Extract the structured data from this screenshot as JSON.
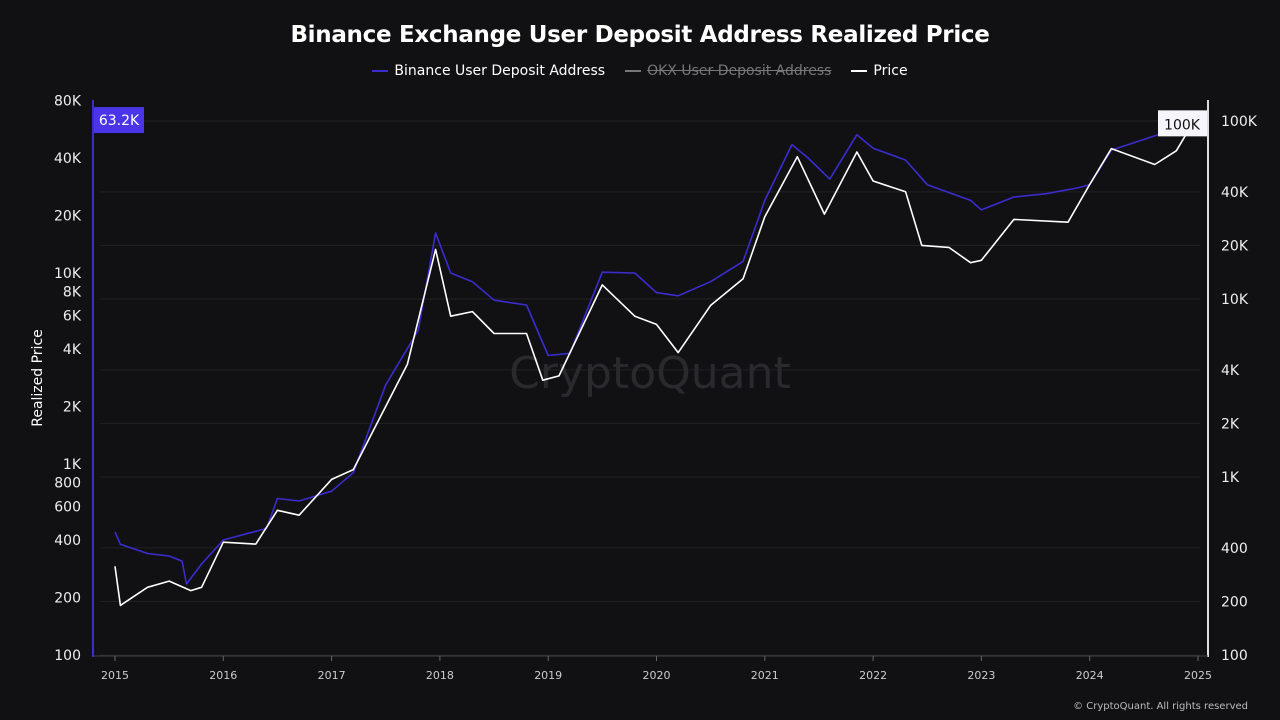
{
  "chart_data": {
    "type": "line",
    "title": "Binance Exchange User Deposit Address Realized Price",
    "ylabel": "Realized Price",
    "legend": [
      {
        "name": "Binance User Deposit Address",
        "color": "#3b2ccf",
        "visible": true
      },
      {
        "name": "OKX User Deposit Address",
        "color": "#9a9a9a",
        "visible": false
      },
      {
        "name": "Price",
        "color": "#ffffff",
        "visible": true
      }
    ],
    "x_ticks": [
      "2015",
      "2016",
      "2017",
      "2018",
      "2019",
      "2020",
      "2021",
      "2022",
      "2023",
      "2024",
      "2025"
    ],
    "xlim": [
      2014.9,
      2025.0
    ],
    "left_axis": {
      "scale": "log",
      "ylim": [
        100,
        80000
      ],
      "ticks": [
        "80K",
        "40K",
        "20K",
        "10K",
        "8K",
        "6K",
        "4K",
        "2K",
        "1K",
        "800",
        "600",
        "400",
        "200",
        "100"
      ],
      "tick_values": [
        80000,
        40000,
        20000,
        10000,
        8000,
        6000,
        4000,
        2000,
        1000,
        800,
        600,
        400,
        200,
        100
      ],
      "current_label": "63.2K",
      "current_value": 63200
    },
    "right_axis": {
      "scale": "log",
      "ylim": [
        100,
        130000
      ],
      "ticks": [
        "100K",
        "40K",
        "20K",
        "10K",
        "4K",
        "2K",
        "1K",
        "400",
        "200",
        "100"
      ],
      "tick_values": [
        100000,
        40000,
        20000,
        10000,
        4000,
        2000,
        1000,
        400,
        200,
        100
      ],
      "current_label": "100K",
      "current_value": 97000
    },
    "grid": true,
    "series": [
      {
        "name": "Binance User Deposit Address",
        "axis": "left",
        "color": "#3b2ccf",
        "x": [
          2015.0,
          2015.05,
          2015.3,
          2015.5,
          2015.62,
          2015.66,
          2015.8,
          2016.0,
          2016.4,
          2016.5,
          2016.7,
          2017.0,
          2017.2,
          2017.5,
          2017.8,
          2017.96,
          2018.1,
          2018.3,
          2018.5,
          2018.8,
          2019.0,
          2019.2,
          2019.5,
          2019.8,
          2020.0,
          2020.2,
          2020.5,
          2020.8,
          2021.0,
          2021.25,
          2021.4,
          2021.6,
          2021.85,
          2022.0,
          2022.3,
          2022.5,
          2022.9,
          2023.0,
          2023.3,
          2023.6,
          2023.9,
          2024.0,
          2024.2,
          2024.5,
          2024.8,
          2024.95
        ],
        "y": [
          440,
          380,
          340,
          330,
          310,
          235,
          300,
          400,
          460,
          660,
          640,
          720,
          900,
          2600,
          5000,
          16200,
          10000,
          9000,
          7200,
          6800,
          3700,
          3800,
          10100,
          10000,
          7900,
          7600,
          9000,
          11500,
          24000,
          47000,
          40000,
          31000,
          53000,
          45000,
          39000,
          29000,
          24000,
          21400,
          25000,
          26000,
          28000,
          29000,
          44000,
          50000,
          57000,
          63200
        ]
      },
      {
        "name": "Price",
        "axis": "right",
        "color": "#ffffff",
        "x": [
          2015.0,
          2015.05,
          2015.3,
          2015.5,
          2015.7,
          2015.8,
          2016.0,
          2016.3,
          2016.5,
          2016.7,
          2017.0,
          2017.2,
          2017.5,
          2017.7,
          2017.96,
          2018.1,
          2018.3,
          2018.5,
          2018.8,
          2018.95,
          2019.1,
          2019.5,
          2019.8,
          2020.0,
          2020.2,
          2020.5,
          2020.8,
          2021.0,
          2021.3,
          2021.55,
          2021.85,
          2022.0,
          2022.3,
          2022.45,
          2022.7,
          2022.9,
          2023.0,
          2023.3,
          2023.8,
          2024.0,
          2024.2,
          2024.6,
          2024.8,
          2024.95
        ],
        "y": [
          315,
          190,
          240,
          260,
          230,
          240,
          430,
          420,
          650,
          610,
          970,
          1100,
          2500,
          4300,
          19000,
          8000,
          8500,
          6400,
          6400,
          3500,
          3700,
          12000,
          8000,
          7200,
          5000,
          9200,
          13000,
          29000,
          63000,
          30000,
          67000,
          46000,
          40000,
          20000,
          19500,
          16000,
          16500,
          28000,
          27000,
          44000,
          70000,
          57000,
          68000,
          97000
        ]
      }
    ]
  },
  "watermark": "CryptoQuant",
  "footer": "© CryptoQuant. All rights reserved"
}
